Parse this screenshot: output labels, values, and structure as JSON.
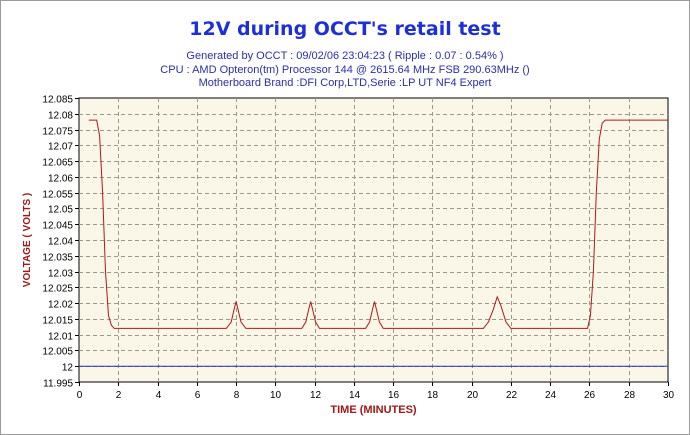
{
  "chart_data": {
    "type": "line",
    "title": "12V during OCCT's retail test",
    "subtitle_lines": [
      "Generated by OCCT : 09/02/06 23:04:23 ( Ripple : 0.07 : 0.54% )",
      "CPU : AMD Opteron(tm) Processor 144    @ 2615.64 MHz FSB 290.63MHz ()",
      "Motherboard Brand :DFI Corp,LTD,Serie :LP UT NF4 Expert"
    ],
    "xlabel": "TIME (MINUTES)",
    "ylabel": "VOLTAGE ( VOLTS )",
    "xlim": [
      0,
      30
    ],
    "ylim": [
      11.995,
      12.085
    ],
    "x_ticks": [
      0,
      2,
      4,
      6,
      8,
      10,
      12,
      14,
      16,
      18,
      20,
      22,
      24,
      26,
      28,
      30
    ],
    "y_ticks": [
      11.995,
      12,
      12.005,
      12.01,
      12.015,
      12.02,
      12.025,
      12.03,
      12.035,
      12.04,
      12.045,
      12.05,
      12.055,
      12.06,
      12.065,
      12.07,
      12.075,
      12.08,
      12.085
    ],
    "grid": true,
    "series": [
      {
        "color": "#b01818",
        "x": [
          0.5,
          0.9,
          1.05,
          1.2,
          1.35,
          1.5,
          1.65,
          1.8,
          2,
          7.5,
          7.75,
          7.9,
          8.0,
          8.1,
          8.25,
          8.5,
          11.35,
          11.55,
          11.7,
          11.8,
          11.9,
          12.05,
          12.25,
          14.6,
          14.8,
          14.95,
          15.05,
          15.15,
          15.3,
          15.5,
          20.6,
          20.85,
          21.1,
          21.3,
          21.5,
          21.75,
          22.0,
          25.9,
          26.05,
          26.2,
          26.35,
          26.5,
          26.65,
          26.8,
          27.0,
          30.0
        ],
        "y": [
          12.078,
          12.078,
          12.073,
          12.055,
          12.03,
          12.016,
          12.013,
          12.012,
          12.012,
          12.012,
          12.014,
          12.018,
          12.0205,
          12.018,
          12.014,
          12.012,
          12.012,
          12.014,
          12.018,
          12.0205,
          12.018,
          12.014,
          12.012,
          12.012,
          12.014,
          12.018,
          12.0205,
          12.018,
          12.014,
          12.012,
          12.012,
          12.014,
          12.018,
          12.022,
          12.019,
          12.014,
          12.012,
          12.012,
          12.016,
          12.03,
          12.055,
          12.072,
          12.077,
          12.078,
          12.078,
          12.078
        ]
      },
      {
        "color": "#2030c0",
        "x": [
          0,
          30
        ],
        "y": [
          12.0,
          12.0
        ]
      }
    ]
  },
  "colors": {
    "title": "#1f2fd8",
    "subtitle": "#2b2fa8",
    "axis_label": "#a01818",
    "plot_background": "#fbf7e8",
    "grid": "#9a9a8a"
  }
}
